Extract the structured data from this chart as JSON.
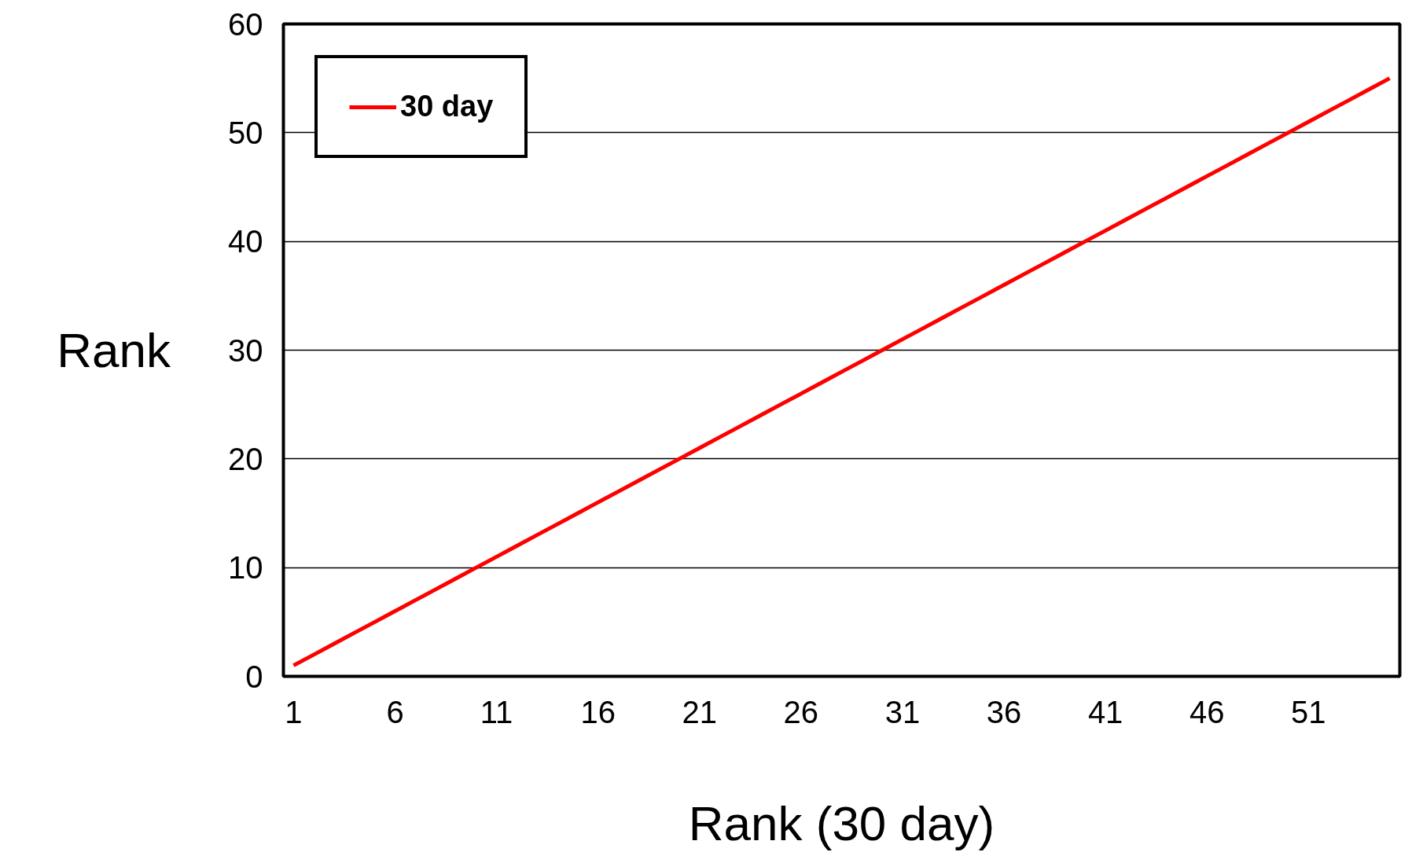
{
  "chart_data": {
    "type": "line",
    "xlabel": "Rank (30 day)",
    "ylabel": "Rank",
    "x": [
      1,
      2,
      3,
      4,
      5,
      6,
      7,
      8,
      9,
      10,
      11,
      12,
      13,
      14,
      15,
      16,
      17,
      18,
      19,
      20,
      21,
      22,
      23,
      24,
      25,
      26,
      27,
      28,
      29,
      30,
      31,
      32,
      33,
      34,
      35,
      36,
      37,
      38,
      39,
      40,
      41,
      42,
      43,
      44,
      45,
      46,
      47,
      48,
      49,
      50,
      51,
      52,
      53,
      54,
      55
    ],
    "series": [
      {
        "name": "30 day",
        "color": "#ff0000",
        "values": [
          1,
          2,
          3,
          4,
          5,
          6,
          7,
          8,
          9,
          10,
          11,
          12,
          13,
          14,
          15,
          16,
          17,
          18,
          19,
          20,
          21,
          22,
          23,
          24,
          25,
          26,
          27,
          28,
          29,
          30,
          31,
          32,
          33,
          34,
          35,
          36,
          37,
          38,
          39,
          40,
          41,
          42,
          43,
          44,
          45,
          46,
          47,
          48,
          49,
          50,
          51,
          52,
          53,
          54,
          55
        ]
      }
    ],
    "xlim": [
      0.5,
      55.5
    ],
    "xticks": [
      1,
      6,
      11,
      16,
      21,
      26,
      31,
      36,
      41,
      46,
      51
    ],
    "ylim": [
      0,
      60
    ],
    "yticks": [
      0,
      10,
      20,
      30,
      40,
      50,
      60
    ],
    "grid": "y",
    "legend": "top left",
    "marker": "none",
    "line_style": "solid"
  }
}
